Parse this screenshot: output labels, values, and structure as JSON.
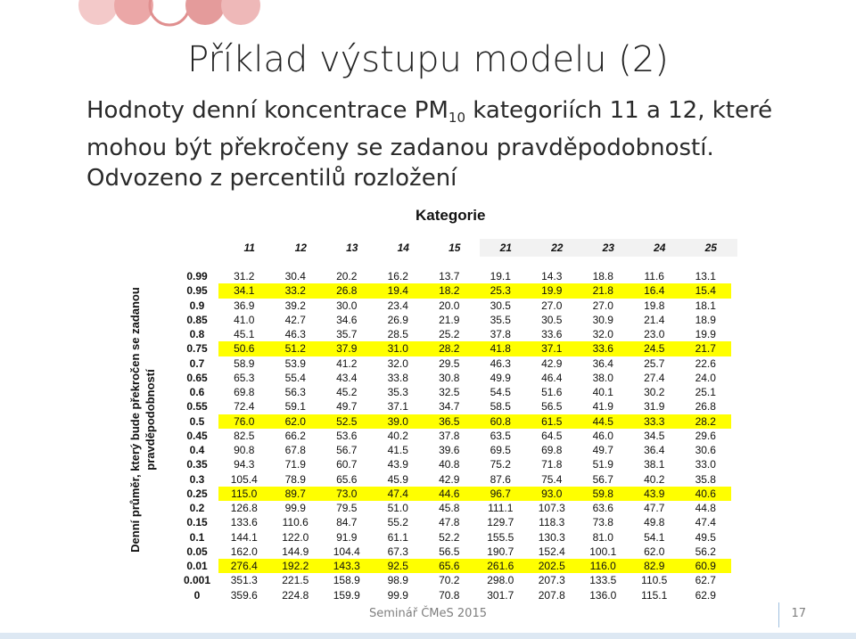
{
  "slide": {
    "title": "Příklad výstupu modelu (2)",
    "subtitle_line1_pre": "Hodnoty denní koncentrace PM",
    "subtitle_line1_sub": "10",
    "subtitle_line1_post": " kategoriích 11 a 12, které",
    "subtitle_line2": "mohou být překročeny se zadanou pravděpodobností.",
    "subtitle_line3": "Odvozeno z percentilů rozložení",
    "category_label": "Kategorie",
    "row_axis_label": "Denní průměr, který bude překročen se zadanou pravděpodobností",
    "footer": "Seminář ČMeS 2015",
    "page_number": "17",
    "highlight_color": "#ffff00"
  },
  "table": {
    "categories": [
      "11",
      "12",
      "13",
      "14",
      "15",
      "21",
      "22",
      "23",
      "24",
      "25"
    ],
    "rows": [
      {
        "p": "0.99",
        "v": [
          "31.2",
          "30.4",
          "20.2",
          "16.2",
          "13.7",
          "19.1",
          "14.3",
          "18.8",
          "11.6",
          "13.1"
        ],
        "hl": false
      },
      {
        "p": "0.95",
        "v": [
          "34.1",
          "33.2",
          "26.8",
          "19.4",
          "18.2",
          "25.3",
          "19.9",
          "21.8",
          "16.4",
          "15.4"
        ],
        "hl": true
      },
      {
        "p": "0.9",
        "v": [
          "36.9",
          "39.2",
          "30.0",
          "23.4",
          "20.0",
          "30.5",
          "27.0",
          "27.0",
          "19.8",
          "18.1"
        ],
        "hl": false
      },
      {
        "p": "0.85",
        "v": [
          "41.0",
          "42.7",
          "34.6",
          "26.9",
          "21.9",
          "35.5",
          "30.5",
          "30.9",
          "21.4",
          "18.9"
        ],
        "hl": false
      },
      {
        "p": "0.8",
        "v": [
          "45.1",
          "46.3",
          "35.7",
          "28.5",
          "25.2",
          "37.8",
          "33.6",
          "32.0",
          "23.0",
          "19.9"
        ],
        "hl": false
      },
      {
        "p": "0.75",
        "v": [
          "50.6",
          "51.2",
          "37.9",
          "31.0",
          "28.2",
          "41.8",
          "37.1",
          "33.6",
          "24.5",
          "21.7"
        ],
        "hl": true
      },
      {
        "p": "0.7",
        "v": [
          "58.9",
          "53.9",
          "41.2",
          "32.0",
          "29.5",
          "46.3",
          "42.9",
          "36.4",
          "25.7",
          "22.6"
        ],
        "hl": false
      },
      {
        "p": "0.65",
        "v": [
          "65.3",
          "55.4",
          "43.4",
          "33.8",
          "30.8",
          "49.9",
          "46.4",
          "38.0",
          "27.4",
          "24.0"
        ],
        "hl": false
      },
      {
        "p": "0.6",
        "v": [
          "69.8",
          "56.3",
          "45.2",
          "35.3",
          "32.5",
          "54.5",
          "51.6",
          "40.1",
          "30.2",
          "25.1"
        ],
        "hl": false
      },
      {
        "p": "0.55",
        "v": [
          "72.4",
          "59.1",
          "49.7",
          "37.1",
          "34.7",
          "58.5",
          "56.5",
          "41.9",
          "31.9",
          "26.8"
        ],
        "hl": false
      },
      {
        "p": "0.5",
        "v": [
          "76.0",
          "62.0",
          "52.5",
          "39.0",
          "36.5",
          "60.8",
          "61.5",
          "44.5",
          "33.3",
          "28.2"
        ],
        "hl": true
      },
      {
        "p": "0.45",
        "v": [
          "82.5",
          "66.2",
          "53.6",
          "40.2",
          "37.8",
          "63.5",
          "64.5",
          "46.0",
          "34.5",
          "29.6"
        ],
        "hl": false
      },
      {
        "p": "0.4",
        "v": [
          "90.8",
          "67.8",
          "56.7",
          "41.5",
          "39.6",
          "69.5",
          "69.8",
          "49.7",
          "36.4",
          "30.6"
        ],
        "hl": false
      },
      {
        "p": "0.35",
        "v": [
          "94.3",
          "71.9",
          "60.7",
          "43.9",
          "40.8",
          "75.2",
          "71.8",
          "51.9",
          "38.1",
          "33.0"
        ],
        "hl": false
      },
      {
        "p": "0.3",
        "v": [
          "105.4",
          "78.9",
          "65.6",
          "45.9",
          "42.9",
          "87.6",
          "75.4",
          "56.7",
          "40.2",
          "35.8"
        ],
        "hl": false
      },
      {
        "p": "0.25",
        "v": [
          "115.0",
          "89.7",
          "73.0",
          "47.4",
          "44.6",
          "96.7",
          "93.0",
          "59.8",
          "43.9",
          "40.6"
        ],
        "hl": true
      },
      {
        "p": "0.2",
        "v": [
          "126.8",
          "99.9",
          "79.5",
          "51.0",
          "45.8",
          "111.1",
          "107.3",
          "63.6",
          "47.7",
          "44.8"
        ],
        "hl": false
      },
      {
        "p": "0.15",
        "v": [
          "133.6",
          "110.6",
          "84.7",
          "55.2",
          "47.8",
          "129.7",
          "118.3",
          "73.8",
          "49.8",
          "47.4"
        ],
        "hl": false
      },
      {
        "p": "0.1",
        "v": [
          "144.1",
          "122.0",
          "91.9",
          "61.1",
          "52.2",
          "155.5",
          "130.3",
          "81.0",
          "54.1",
          "49.5"
        ],
        "hl": false
      },
      {
        "p": "0.05",
        "v": [
          "162.0",
          "144.9",
          "104.4",
          "67.3",
          "56.5",
          "190.7",
          "152.4",
          "100.1",
          "62.0",
          "56.2"
        ],
        "hl": false
      },
      {
        "p": "0.01",
        "v": [
          "276.4",
          "192.2",
          "143.3",
          "92.5",
          "65.6",
          "261.6",
          "202.5",
          "116.0",
          "82.9",
          "60.9"
        ],
        "hl": true
      },
      {
        "p": "0.001",
        "v": [
          "351.3",
          "221.5",
          "158.9",
          "98.9",
          "70.2",
          "298.0",
          "207.3",
          "133.5",
          "110.5",
          "62.7"
        ],
        "hl": false
      },
      {
        "p": "0",
        "v": [
          "359.6",
          "224.8",
          "159.9",
          "99.9",
          "70.8",
          "301.7",
          "207.8",
          "136.0",
          "115.1",
          "62.9"
        ],
        "hl": false
      }
    ]
  }
}
